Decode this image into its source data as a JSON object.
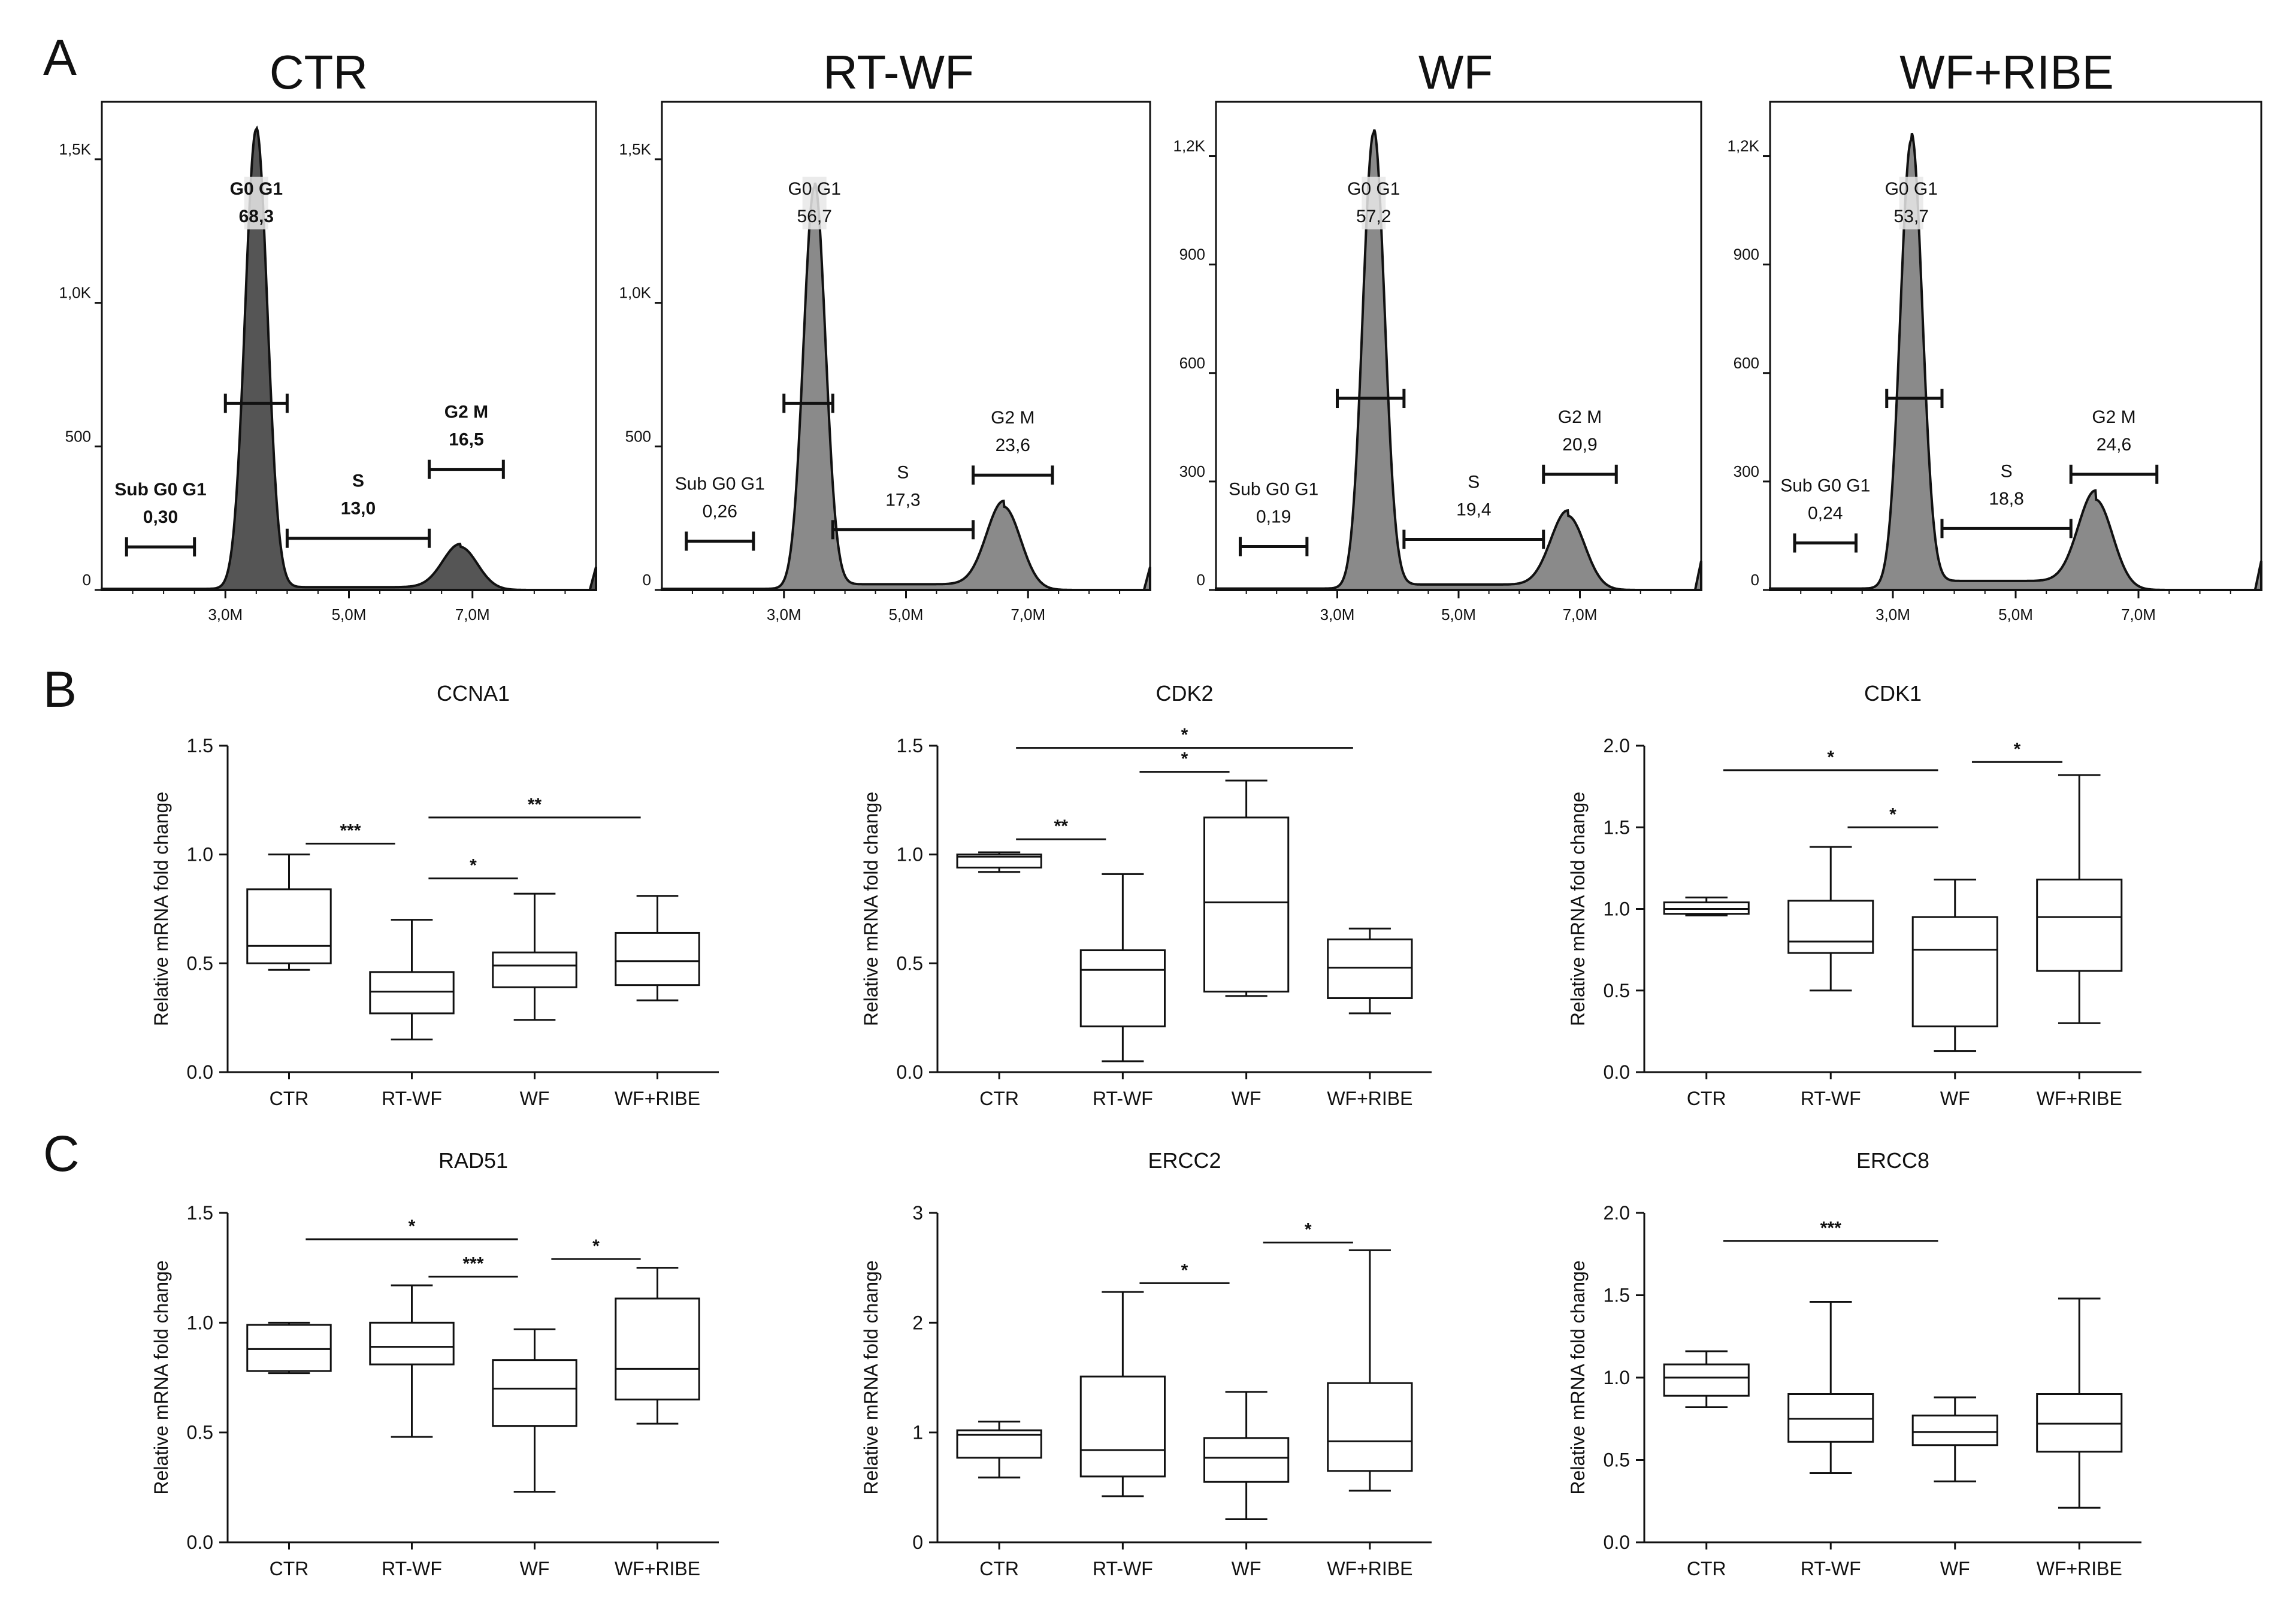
{
  "panel_labels": [
    "A",
    "B",
    "C"
  ],
  "chart_data": [
    {
      "type": "histogram",
      "title": "CTR",
      "xticks": [
        "3,0M",
        "5,0M",
        "7,0M"
      ],
      "yticks": [
        {
          "v": 0,
          "t": "0"
        },
        {
          "v": 500,
          "t": "500"
        },
        {
          "v": 1000,
          "t": "1,0K"
        },
        {
          "v": 1500,
          "t": "1,5K"
        }
      ],
      "ylim": [
        0,
        1700
      ],
      "xlim": [
        1.0,
        9.0
      ],
      "peaks": {
        "g1_pos": 3.5,
        "g1_height": 1600,
        "g2_pos": 6.8,
        "g2_height": 150,
        "s_level": 10
      },
      "gates": [
        {
          "name": "Sub G0 G1",
          "value": "0,30",
          "x1": 1.4,
          "x2": 2.5,
          "y": 150,
          "bold": true
        },
        {
          "name": "G0 G1",
          "value": "68,3",
          "x1": 3.0,
          "x2": 4.0,
          "y": 650,
          "bold": true
        },
        {
          "name": "S",
          "value": "13,0",
          "x1": 4.0,
          "x2": 6.3,
          "y": 180,
          "bold": true
        },
        {
          "name": "G2 M",
          "value": "16,5",
          "x1": 6.3,
          "x2": 7.5,
          "y": 420,
          "bold": true
        }
      ]
    },
    {
      "type": "histogram",
      "title": "RT-WF",
      "xticks": [
        "3,0M",
        "5,0M",
        "7,0M"
      ],
      "yticks": [
        {
          "v": 0,
          "t": "0"
        },
        {
          "v": 500,
          "t": "500"
        },
        {
          "v": 1000,
          "t": "1,0K"
        },
        {
          "v": 1500,
          "t": "1,5K"
        }
      ],
      "ylim": [
        0,
        1700
      ],
      "xlim": [
        1.0,
        9.0
      ],
      "peaks": {
        "g1_pos": 3.5,
        "g1_height": 1400,
        "g2_pos": 6.6,
        "g2_height": 290,
        "s_level": 20
      },
      "gates": [
        {
          "name": "Sub G0 G1",
          "value": "0,26",
          "x1": 1.4,
          "x2": 2.5,
          "y": 170,
          "bold": false
        },
        {
          "name": "G0 G1",
          "value": "56,7",
          "x1": 3.0,
          "x2": 3.8,
          "y": 650,
          "bold": false
        },
        {
          "name": "S",
          "value": "17,3",
          "x1": 3.8,
          "x2": 6.1,
          "y": 210,
          "bold": false
        },
        {
          "name": "G2 M",
          "value": "23,6",
          "x1": 6.1,
          "x2": 7.4,
          "y": 400,
          "bold": false
        }
      ]
    },
    {
      "type": "histogram",
      "title": "WF",
      "xticks": [
        "3,0M",
        "5,0M",
        "7,0M"
      ],
      "yticks": [
        {
          "v": 0,
          "t": "0"
        },
        {
          "v": 300,
          "t": "300"
        },
        {
          "v": 600,
          "t": "600"
        },
        {
          "v": 900,
          "t": "900"
        },
        {
          "v": 1200,
          "t": "1,2K"
        }
      ],
      "ylim": [
        0,
        1350
      ],
      "xlim": [
        1.0,
        9.0
      ],
      "peaks": {
        "g1_pos": 3.6,
        "g1_height": 1260,
        "g2_pos": 6.8,
        "g2_height": 205,
        "s_level": 15
      },
      "gates": [
        {
          "name": "Sub G0 G1",
          "value": "0,19",
          "x1": 1.4,
          "x2": 2.5,
          "y": 120,
          "bold": false
        },
        {
          "name": "G0 G1",
          "value": "57,2",
          "x1": 3.0,
          "x2": 4.1,
          "y": 530,
          "bold": false
        },
        {
          "name": "S",
          "value": "19,4",
          "x1": 4.1,
          "x2": 6.4,
          "y": 140,
          "bold": false
        },
        {
          "name": "G2 M",
          "value": "20,9",
          "x1": 6.4,
          "x2": 7.6,
          "y": 320,
          "bold": false
        }
      ]
    },
    {
      "type": "histogram",
      "title": "WF+RIBE",
      "xticks": [
        "3,0M",
        "5,0M",
        "7,0M"
      ],
      "yticks": [
        {
          "v": 0,
          "t": "0"
        },
        {
          "v": 300,
          "t": "300"
        },
        {
          "v": 600,
          "t": "600"
        },
        {
          "v": 900,
          "t": "900"
        },
        {
          "v": 1200,
          "t": "1,2K"
        }
      ],
      "ylim": [
        0,
        1350
      ],
      "xlim": [
        1.0,
        9.0
      ],
      "peaks": {
        "g1_pos": 3.3,
        "g1_height": 1240,
        "g2_pos": 6.3,
        "g2_height": 250,
        "s_level": 25
      },
      "gates": [
        {
          "name": "Sub G0 G1",
          "value": "0,24",
          "x1": 1.4,
          "x2": 2.4,
          "y": 130,
          "bold": false
        },
        {
          "name": "G0 G1",
          "value": "53,7",
          "x1": 2.9,
          "x2": 3.8,
          "y": 530,
          "bold": false
        },
        {
          "name": "S",
          "value": "18,8",
          "x1": 3.8,
          "x2": 5.9,
          "y": 170,
          "bold": false
        },
        {
          "name": "G2 M",
          "value": "24,6",
          "x1": 5.9,
          "x2": 7.3,
          "y": 320,
          "bold": false
        }
      ]
    },
    {
      "type": "boxplot",
      "title": "CCNA1",
      "ylabel": "Relative mRNA fold change",
      "categories": [
        "CTR",
        "RT-WF",
        "WF",
        "WF+RIBE"
      ],
      "ylim": [
        0,
        1.5
      ],
      "yticks": [
        {
          "v": 0,
          "t": "0.0"
        },
        {
          "v": 0.5,
          "t": "0.5"
        },
        {
          "v": 1.0,
          "t": "1.0"
        },
        {
          "v": 1.5,
          "t": "1.5"
        }
      ],
      "boxes": [
        {
          "min": 0.47,
          "q1": 0.5,
          "median": 0.58,
          "q3": 0.84,
          "max": 1.0
        },
        {
          "min": 0.15,
          "q1": 0.27,
          "median": 0.37,
          "q3": 0.46,
          "max": 0.7
        },
        {
          "min": 0.24,
          "q1": 0.39,
          "median": 0.49,
          "q3": 0.55,
          "max": 0.82
        },
        {
          "min": 0.33,
          "q1": 0.4,
          "median": 0.51,
          "q3": 0.64,
          "max": 0.81
        }
      ],
      "significance": [
        {
          "from": 0,
          "to": 1,
          "y": 1.05,
          "label": "***"
        },
        {
          "from": 1,
          "to": 3,
          "y": 1.17,
          "label": "**"
        },
        {
          "from": 1,
          "to": 2,
          "y": 0.89,
          "label": "*"
        }
      ]
    },
    {
      "type": "boxplot",
      "title": "CDK2",
      "ylabel": "Relative mRNA fold change",
      "categories": [
        "CTR",
        "RT-WF",
        "WF",
        "WF+RIBE"
      ],
      "ylim": [
        0,
        1.5
      ],
      "yticks": [
        {
          "v": 0,
          "t": "0.0"
        },
        {
          "v": 0.5,
          "t": "0.5"
        },
        {
          "v": 1.0,
          "t": "1.0"
        },
        {
          "v": 1.5,
          "t": "1.5"
        }
      ],
      "boxes": [
        {
          "min": 0.92,
          "q1": 0.94,
          "median": 0.99,
          "q3": 1.0,
          "max": 1.01
        },
        {
          "min": 0.05,
          "q1": 0.21,
          "median": 0.47,
          "q3": 0.56,
          "max": 0.91
        },
        {
          "min": 0.35,
          "q1": 0.37,
          "median": 0.78,
          "q3": 1.17,
          "max": 1.34
        },
        {
          "min": 0.27,
          "q1": 0.34,
          "median": 0.48,
          "q3": 0.61,
          "max": 0.66
        }
      ],
      "significance": [
        {
          "from": 0,
          "to": 1,
          "y": 1.07,
          "label": "**"
        },
        {
          "from": 0,
          "to": 3,
          "y": 1.49,
          "label": "*"
        },
        {
          "from": 1,
          "to": 2,
          "y": 1.38,
          "label": "*"
        }
      ]
    },
    {
      "type": "boxplot",
      "title": "CDK1",
      "ylabel": "Relative mRNA fold change",
      "categories": [
        "CTR",
        "RT-WF",
        "WF",
        "WF+RIBE"
      ],
      "ylim": [
        0,
        2.0
      ],
      "yticks": [
        {
          "v": 0,
          "t": "0.0"
        },
        {
          "v": 0.5,
          "t": "0.5"
        },
        {
          "v": 1.0,
          "t": "1.0"
        },
        {
          "v": 1.5,
          "t": "1.5"
        },
        {
          "v": 2.0,
          "t": "2.0"
        }
      ],
      "boxes": [
        {
          "min": 0.96,
          "q1": 0.97,
          "median": 1.0,
          "q3": 1.04,
          "max": 1.07
        },
        {
          "min": 0.5,
          "q1": 0.73,
          "median": 0.8,
          "q3": 1.05,
          "max": 1.38
        },
        {
          "min": 0.13,
          "q1": 0.28,
          "median": 0.75,
          "q3": 0.95,
          "max": 1.18
        },
        {
          "min": 0.3,
          "q1": 0.62,
          "median": 0.95,
          "q3": 1.18,
          "max": 1.82
        }
      ],
      "significance": [
        {
          "from": 0,
          "to": 2,
          "y": 1.85,
          "label": "*"
        },
        {
          "from": 1,
          "to": 2,
          "y": 1.5,
          "label": "*"
        },
        {
          "from": 2,
          "to": 3,
          "y": 1.9,
          "label": "*"
        }
      ]
    },
    {
      "type": "boxplot",
      "title": "RAD51",
      "ylabel": "Relative mRNA fold change",
      "categories": [
        "CTR",
        "RT-WF",
        "WF",
        "WF+RIBE"
      ],
      "ylim": [
        0,
        1.5
      ],
      "yticks": [
        {
          "v": 0,
          "t": "0.0"
        },
        {
          "v": 0.5,
          "t": "0.5"
        },
        {
          "v": 1.0,
          "t": "1.0"
        },
        {
          "v": 1.5,
          "t": "1.5"
        }
      ],
      "boxes": [
        {
          "min": 0.77,
          "q1": 0.78,
          "median": 0.88,
          "q3": 0.99,
          "max": 1.0
        },
        {
          "min": 0.48,
          "q1": 0.81,
          "median": 0.89,
          "q3": 1.0,
          "max": 1.17
        },
        {
          "min": 0.23,
          "q1": 0.53,
          "median": 0.7,
          "q3": 0.83,
          "max": 0.97
        },
        {
          "min": 0.54,
          "q1": 0.65,
          "median": 0.79,
          "q3": 1.11,
          "max": 1.25
        }
      ],
      "significance": [
        {
          "from": 0,
          "to": 2,
          "y": 1.38,
          "label": "*"
        },
        {
          "from": 1,
          "to": 2,
          "y": 1.21,
          "label": "***"
        },
        {
          "from": 2,
          "to": 3,
          "y": 1.29,
          "label": "*"
        }
      ]
    },
    {
      "type": "boxplot",
      "title": "ERCC2",
      "ylabel": "Relative mRNA fold change",
      "categories": [
        "CTR",
        "RT-WF",
        "WF",
        "WF+RIBE"
      ],
      "ylim": [
        0,
        3
      ],
      "yticks": [
        {
          "v": 0,
          "t": "0"
        },
        {
          "v": 1,
          "t": "1"
        },
        {
          "v": 2,
          "t": "2"
        },
        {
          "v": 3,
          "t": "3"
        }
      ],
      "boxes": [
        {
          "min": 0.59,
          "q1": 0.77,
          "median": 0.98,
          "q3": 1.02,
          "max": 1.1
        },
        {
          "min": 0.42,
          "q1": 0.6,
          "median": 0.84,
          "q3": 1.51,
          "max": 2.28
        },
        {
          "min": 0.21,
          "q1": 0.55,
          "median": 0.77,
          "q3": 0.95,
          "max": 1.37
        },
        {
          "min": 0.47,
          "q1": 0.65,
          "median": 0.92,
          "q3": 1.45,
          "max": 2.66
        }
      ],
      "significance": [
        {
          "from": 1,
          "to": 2,
          "y": 2.36,
          "label": "*"
        },
        {
          "from": 2,
          "to": 3,
          "y": 2.73,
          "label": "*"
        }
      ]
    },
    {
      "type": "boxplot",
      "title": "ERCC8",
      "ylabel": "Relative mRNA fold change",
      "categories": [
        "CTR",
        "RT-WF",
        "WF",
        "WF+RIBE"
      ],
      "ylim": [
        0,
        2.0
      ],
      "yticks": [
        {
          "v": 0,
          "t": "0.0"
        },
        {
          "v": 0.5,
          "t": "0.5"
        },
        {
          "v": 1.0,
          "t": "1.0"
        },
        {
          "v": 1.5,
          "t": "1.5"
        },
        {
          "v": 2.0,
          "t": "2.0"
        }
      ],
      "boxes": [
        {
          "min": 0.82,
          "q1": 0.89,
          "median": 1.0,
          "q3": 1.08,
          "max": 1.16
        },
        {
          "min": 0.42,
          "q1": 0.61,
          "median": 0.75,
          "q3": 0.9,
          "max": 1.46
        },
        {
          "min": 0.37,
          "q1": 0.59,
          "median": 0.67,
          "q3": 0.77,
          "max": 0.88
        },
        {
          "min": 0.21,
          "q1": 0.55,
          "median": 0.72,
          "q3": 0.9,
          "max": 1.48
        }
      ],
      "significance": [
        {
          "from": 0,
          "to": 2,
          "y": 1.83,
          "label": "***"
        }
      ]
    }
  ]
}
